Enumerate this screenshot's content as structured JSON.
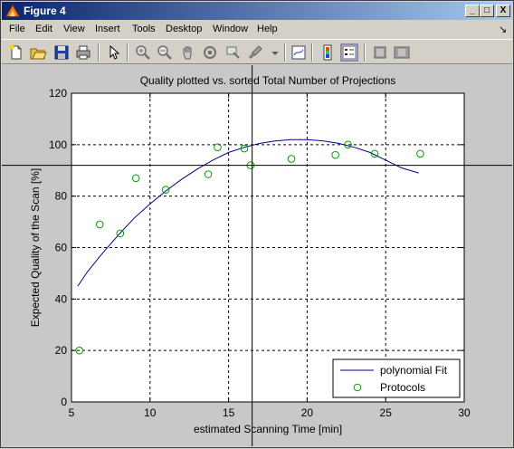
{
  "window": {
    "title": "Figure 4",
    "controls": [
      "_",
      "□",
      "X"
    ]
  },
  "menubar": {
    "items": [
      "File",
      "Edit",
      "View",
      "Insert",
      "Tools",
      "Desktop",
      "Window",
      "Help"
    ],
    "dock_arrow": "↘"
  },
  "toolbar": {
    "buttons": [
      "new-figure",
      "open-file",
      "save",
      "print",
      "edit-plot",
      "zoom-in",
      "zoom-out",
      "pan",
      "rotate-3d",
      "data-cursor",
      "brush",
      "link-plot",
      "colorbar",
      "legend",
      "hide-plot-tools",
      "show-plot-tools"
    ]
  },
  "chart_data": {
    "type": "scatter",
    "title": "Quality plotted vs. sorted Total Number of Projections",
    "xlabel": "estimated Scanning Time [min]",
    "ylabel": "Expected Quality of the Scan [%]",
    "xlim": [
      5,
      30
    ],
    "ylim": [
      0,
      120
    ],
    "xticks": [
      5,
      10,
      15,
      20,
      25,
      30
    ],
    "yticks": [
      0,
      20,
      40,
      60,
      80,
      100,
      120
    ],
    "grid": true,
    "legend_position": "bottom-right",
    "series": [
      {
        "name": "polynomial Fit",
        "style": "line",
        "color": "#00008b",
        "x": [
          5.4,
          6,
          7,
          8,
          9,
          10,
          11,
          12,
          13,
          14,
          15,
          16,
          17,
          18,
          19,
          20,
          21,
          22,
          23,
          24,
          25,
          26,
          27.1
        ],
        "y": [
          45,
          50.5,
          58,
          65,
          71.5,
          77,
          82,
          86.5,
          90.5,
          94,
          97,
          99,
          100.5,
          101.5,
          102,
          102,
          101.5,
          100.5,
          99,
          97,
          94,
          91,
          89
        ]
      },
      {
        "name": "Protocols",
        "style": "markers",
        "color": "#00a000",
        "x": [
          5.5,
          6.8,
          8.1,
          9.1,
          11,
          13.7,
          14.3,
          16,
          16.4,
          19,
          21.8,
          22.6,
          24.3,
          27.2
        ],
        "y": [
          20,
          69,
          65.5,
          87,
          82.5,
          88.5,
          99,
          98.5,
          92,
          94.5,
          96,
          100,
          96.5,
          96.5
        ]
      }
    ],
    "crosshair": {
      "x": 16.5,
      "y": 92
    }
  }
}
